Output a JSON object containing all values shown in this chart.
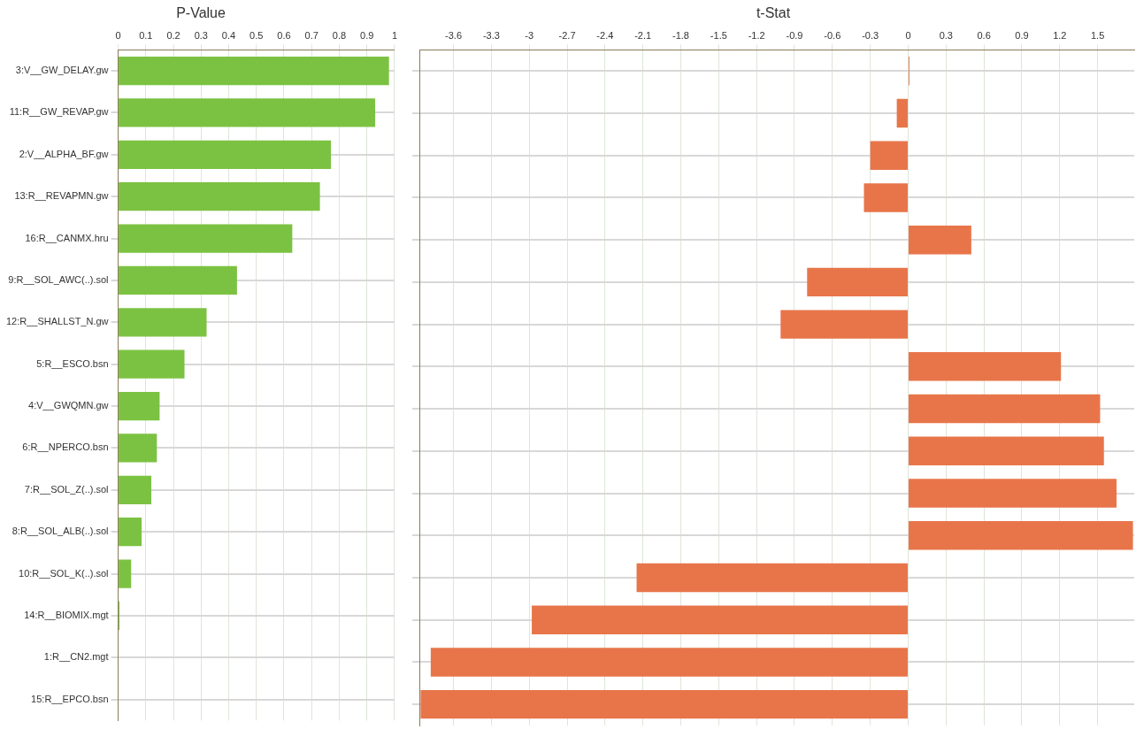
{
  "chart_data": [
    {
      "type": "bar",
      "orientation": "horizontal",
      "title": "P-Value",
      "categories": [
        "3:V__GW_DELAY.gw",
        "11:R__GW_REVAP.gw",
        "2:V__ALPHA_BF.gw",
        "13:R__REVAPMN.gw",
        "16:R__CANMX.hru",
        "9:R__SOL_AWC(..).sol",
        "12:R__SHALLST_N.gw",
        "5:R__ESCO.bsn",
        "4:V__GWQMN.gw",
        "6:R__NPERCO.bsn",
        "7:R__SOL_Z(..).sol",
        "8:R__SOL_ALB(..).sol",
        "10:R__SOL_K(..).sol",
        "14:R__BIOMIX.mgt",
        "1:R__CN2.mgt",
        "15:R__EPCO.bsn"
      ],
      "values": [
        0.98,
        0.93,
        0.77,
        0.73,
        0.63,
        0.43,
        0.32,
        0.24,
        0.15,
        0.14,
        0.12,
        0.085,
        0.047,
        0.005,
        0,
        0
      ],
      "color": "#7cc242",
      "xlim": [
        0,
        1
      ],
      "xticks": [
        0,
        0.1,
        0.2,
        0.3,
        0.4,
        0.5,
        0.6,
        0.7,
        0.8,
        0.9,
        1
      ],
      "grid": true
    },
    {
      "type": "bar",
      "orientation": "horizontal",
      "title": "t-Stat",
      "categories": [
        null,
        null,
        null,
        null,
        null,
        null,
        null,
        null,
        null,
        null,
        null,
        null,
        null,
        null,
        null,
        null
      ],
      "values": [
        0.01,
        -0.09,
        -0.3,
        -0.35,
        0.5,
        -0.8,
        -1.01,
        1.21,
        1.52,
        1.55,
        1.65,
        1.78,
        -2.15,
        -2.98,
        -3.78,
        -3.86
      ],
      "color": "#e8754a",
      "xlim": [
        -3.87,
        1.79
      ],
      "xticks": [
        -3.6,
        -3.3,
        -3,
        -2.7,
        -2.4,
        -2.1,
        -1.8,
        -1.5,
        -1.2,
        -0.9,
        -0.6,
        -0.3,
        0,
        0.3,
        0.6,
        0.9,
        1.2,
        1.5
      ],
      "grid": true,
      "tick_labels": "x"
    }
  ]
}
